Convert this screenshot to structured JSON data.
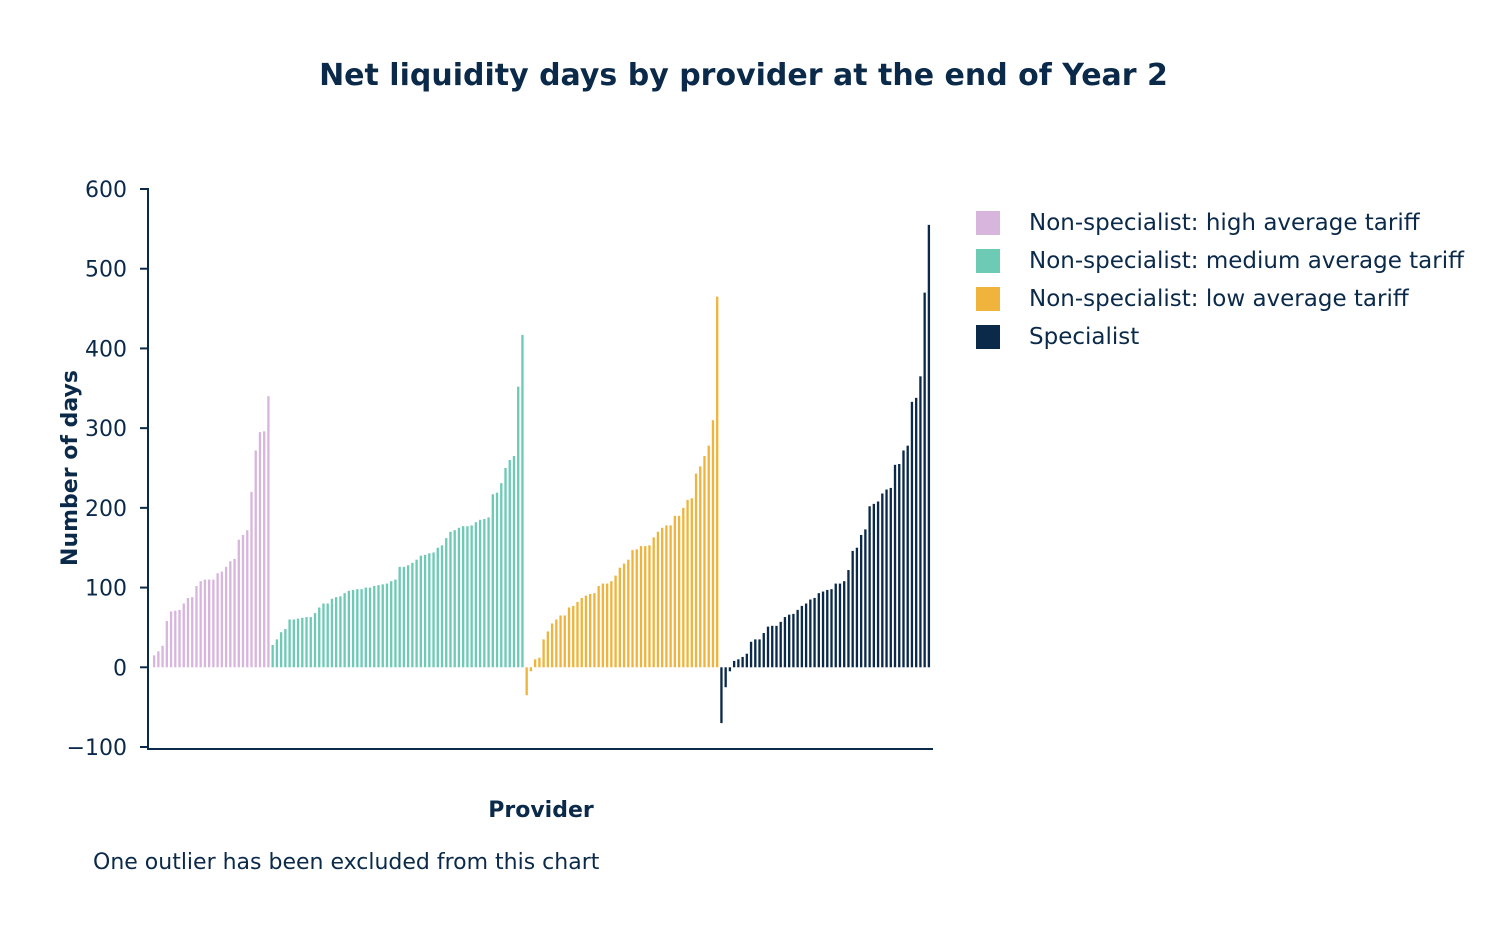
{
  "chart_data": {
    "type": "bar",
    "title": "Net liquidity days by provider at the end of Year 2",
    "xlabel": "Provider",
    "ylabel": "Number of days",
    "ylim": [
      -100,
      600
    ],
    "yticks": [
      -100,
      0,
      100,
      200,
      300,
      400,
      500,
      600
    ],
    "ytick_labels": [
      "−100",
      "0",
      "100",
      "200",
      "300",
      "400",
      "500",
      "600"
    ],
    "grid": false,
    "legend_position": "right",
    "footnote": "One outlier has been excluded from this chart",
    "series": [
      {
        "name": "Non-specialist: high average tariff",
        "color": "#d8b5dd",
        "values": [
          15,
          20,
          27,
          58,
          70,
          71,
          72,
          80,
          87,
          88,
          102,
          108,
          110,
          110,
          110,
          118,
          120,
          126,
          133,
          136,
          160,
          166,
          172,
          220,
          272,
          295,
          296,
          340
        ]
      },
      {
        "name": "Non-specialist: medium average tariff",
        "color": "#6ccab5",
        "values": [
          28,
          35,
          44,
          48,
          60,
          60,
          61,
          62,
          63,
          63,
          68,
          75,
          80,
          80,
          86,
          88,
          89,
          93,
          96,
          97,
          98,
          98,
          100,
          100,
          102,
          103,
          104,
          105,
          108,
          110,
          126,
          126,
          128,
          131,
          135,
          140,
          141,
          143,
          144,
          150,
          153,
          162,
          170,
          172,
          175,
          177,
          177,
          178,
          182,
          185,
          186,
          188,
          217,
          219,
          231,
          250,
          260,
          265,
          352,
          417
        ]
      },
      {
        "name": "Non-specialist: low average tariff",
        "color": "#f0b43c",
        "values": [
          -35,
          -5,
          10,
          12,
          35,
          45,
          55,
          60,
          65,
          65,
          75,
          77,
          82,
          87,
          90,
          92,
          93,
          102,
          105,
          105,
          108,
          115,
          125,
          130,
          135,
          147,
          148,
          152,
          152,
          153,
          163,
          170,
          175,
          178,
          178,
          190,
          190,
          200,
          210,
          212,
          243,
          252,
          265,
          278,
          310,
          465
        ]
      },
      {
        "name": "Specialist",
        "color": "#0b2a4a",
        "values": [
          -70,
          -25,
          -5,
          8,
          10,
          13,
          17,
          32,
          35,
          35,
          43,
          51,
          52,
          52,
          57,
          63,
          66,
          67,
          72,
          77,
          80,
          85,
          87,
          93,
          95,
          97,
          98,
          105,
          105,
          108,
          122,
          146,
          150,
          166,
          173,
          202,
          205,
          208,
          218,
          223,
          225,
          254,
          255,
          272,
          278,
          333,
          338,
          365,
          470,
          555
        ]
      }
    ]
  }
}
